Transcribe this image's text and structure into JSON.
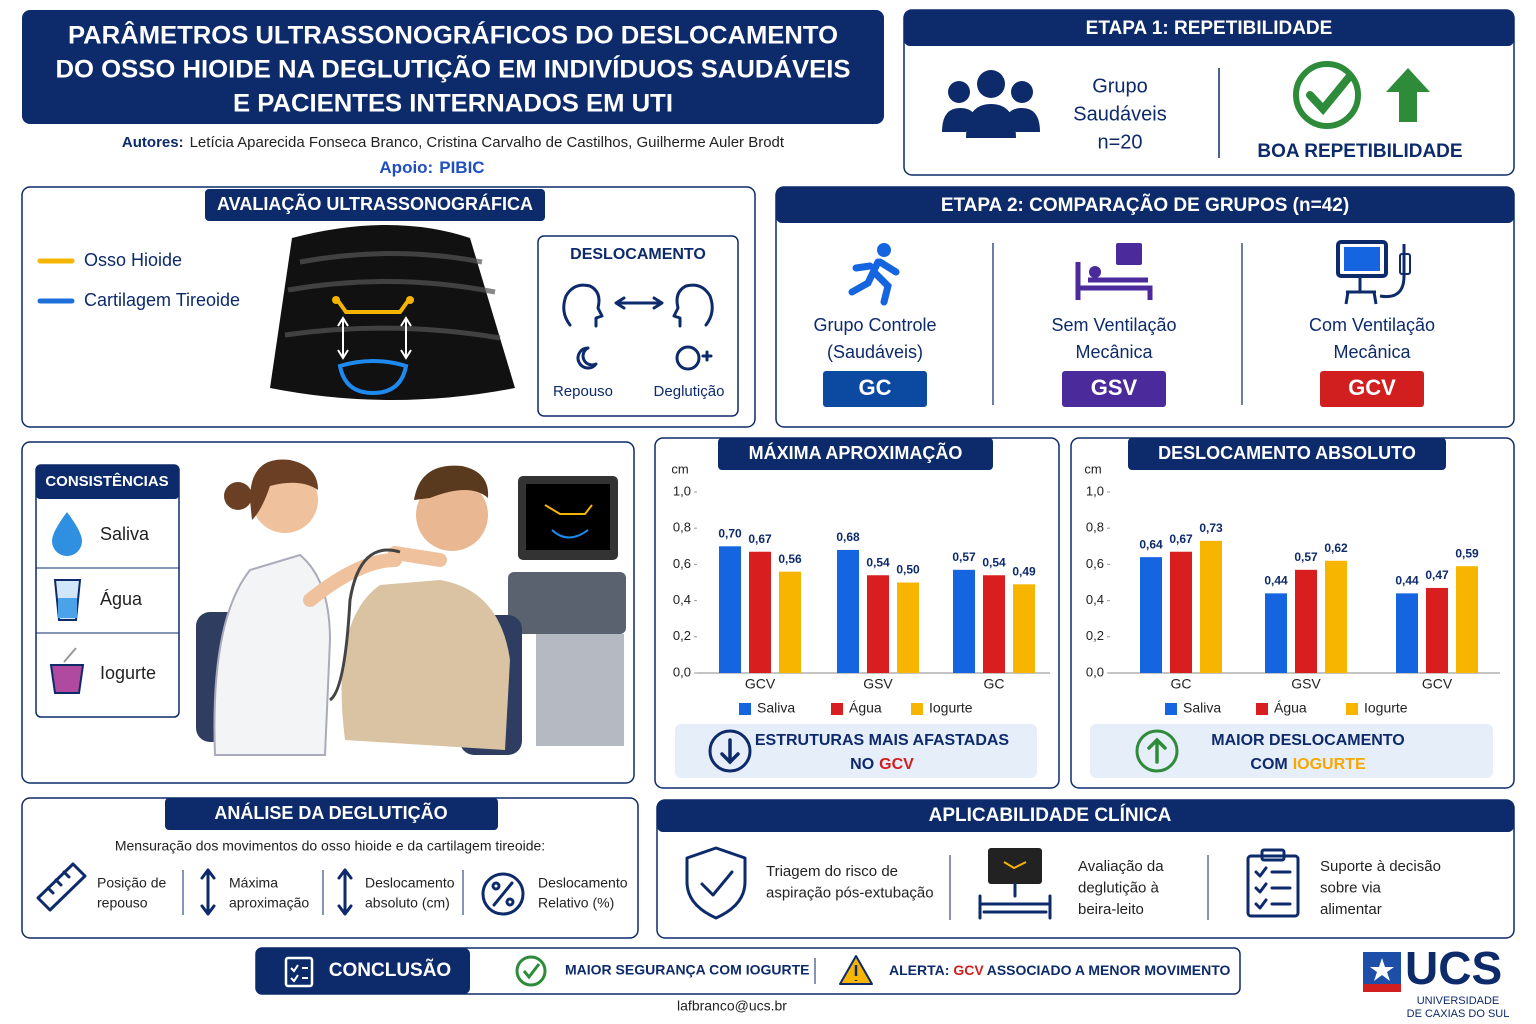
{
  "header": {
    "title": [
      "PARÂMETROS ULTRASSONOGRÁFICOS DO DESLOCAMENTO",
      "DO OSSO HIOIDE NA DEGLUTIÇÃO EM INDIVÍDUOS SAUDÁVEIS",
      "E PACIENTES INTERNADOS EM UTI"
    ],
    "authors_label": "Autores:",
    "authors": "Letícia Aparecida Fonseca Branco, Cristina Carvalho de Castilhos, Guilherme Auler Brodt",
    "support_label": "Apoio:",
    "support": "PIBIC"
  },
  "stage1": {
    "title": "ETAPA 1: REPETIBILIDADE",
    "group": [
      "Grupo",
      "Saudáveis",
      "n=20"
    ],
    "result": "BOA REPETIBILIDADE"
  },
  "evaluation": {
    "title": "AVALIAÇÃO ULTRASSONOGRÁFICA",
    "legend": [
      {
        "label": "Osso Hioide",
        "color": "#f5b400"
      },
      {
        "label": "Cartilagem Tireoide",
        "color": "#1e6fd9"
      }
    ],
    "displacement": {
      "title": "DESLOCAMENTO",
      "rest": "Repouso",
      "swallow": "Deglutição"
    }
  },
  "stage2": {
    "title": "ETAPA 2: COMPARAÇÃO DE GRUPOS (n=42)",
    "groups": [
      {
        "lines": [
          "Grupo Controle",
          "(Saudáveis)"
        ],
        "code": "GC",
        "color": "#0b4aa0"
      },
      {
        "lines": [
          "Sem Ventilação",
          "Mecânica"
        ],
        "code": "GSV",
        "color": "#4b2a9c"
      },
      {
        "lines": [
          "Com Ventilação",
          "Mecânica"
        ],
        "code": "GCV",
        "color": "#d11f1f"
      }
    ]
  },
  "consistencies": {
    "title": "CONSISTÊNCIAS",
    "items": [
      "Saliva",
      "Água",
      "Iogurte"
    ]
  },
  "chart_data": [
    {
      "type": "bar",
      "title": "MÁXIMA APROXIMAÇÃO",
      "y_label": "cm",
      "categories": [
        "GCV",
        "GSV",
        "GC"
      ],
      "series": [
        {
          "name": "Saliva",
          "color": "#1565e0",
          "values": [
            0.7,
            0.68,
            0.57
          ],
          "value_labels": [
            "0,70",
            "0,68",
            "0,57"
          ]
        },
        {
          "name": "Água",
          "color": "#d81e1e",
          "values": [
            0.67,
            0.54,
            0.54
          ],
          "value_labels": [
            "0,67",
            "0,54",
            "0,54"
          ]
        },
        {
          "name": "Iogurte",
          "color": "#f7b500",
          "values": [
            0.56,
            0.5,
            0.49
          ],
          "value_labels": [
            "0,56",
            "0,50",
            "0,49"
          ]
        }
      ],
      "ylim": [
        0,
        1
      ],
      "yticks": [
        {
          "value": 0,
          "label": "0,0"
        },
        {
          "value": 0.2,
          "label": "0,2"
        },
        {
          "value": 0.4,
          "label": "0,4"
        },
        {
          "value": 0.6,
          "label": "0,6"
        },
        {
          "value": 0.8,
          "label": "0,8"
        },
        {
          "value": 1,
          "label": "1,0"
        }
      ],
      "annotation": {
        "line1": "ESTRUTURAS MAIS AFASTADAS",
        "line2": "NO",
        "highlight": "GCV"
      }
    },
    {
      "type": "bar",
      "title": "DESLOCAMENTO ABSOLUTO",
      "y_label": "cm",
      "categories": [
        "GC",
        "GSV",
        "GCV"
      ],
      "series": [
        {
          "name": "Saliva",
          "color": "#1565e0",
          "values": [
            0.64,
            0.44,
            0.44
          ],
          "value_labels": [
            "0,64",
            "0,44",
            "0,44"
          ]
        },
        {
          "name": "Água",
          "color": "#d81e1e",
          "values": [
            0.67,
            0.57,
            0.47
          ],
          "value_labels": [
            "0,67",
            "0,57",
            "0,47"
          ]
        },
        {
          "name": "Iogurte",
          "color": "#f7b500",
          "values": [
            0.73,
            0.62,
            0.59
          ],
          "value_labels": [
            "0,73",
            "0,62",
            "0,59"
          ]
        }
      ],
      "ylim": [
        0,
        1
      ],
      "yticks": [
        {
          "value": 0,
          "label": "0,0"
        },
        {
          "value": 0.2,
          "label": "0,2"
        },
        {
          "value": 0.4,
          "label": "0,4"
        },
        {
          "value": 0.6,
          "label": "0,6"
        },
        {
          "value": 0.8,
          "label": "0,8"
        },
        {
          "value": 1,
          "label": "1,0"
        }
      ],
      "annotation": {
        "line1": "MAIOR DESLOCAMENTO",
        "line2": "COM",
        "highlight": "IOGURTE"
      }
    }
  ],
  "analysis": {
    "title": "ANÁLISE DA DEGLUTIÇÃO",
    "intro": "Mensuração dos movimentos do osso hioide e da cartilagem tireoide:",
    "items": [
      [
        "Posição de",
        "repouso"
      ],
      [
        "Máxima",
        "aproximação"
      ],
      [
        "Deslocamento",
        "absoluto (cm)"
      ],
      [
        "Deslocamento",
        "Relativo (%)"
      ]
    ]
  },
  "clinical": {
    "title": "APLICABILIDADE CLÍNICA",
    "items": [
      [
        "Triagem do risco de",
        "aspiração pós-extubação"
      ],
      [
        "Avaliação da",
        "deglutição à",
        "beira-leito"
      ],
      [
        "Suporte à decisão",
        "sobre via",
        "alimentar"
      ]
    ]
  },
  "conclusion": {
    "title": "CONCLUSÃO",
    "positive": "MAIOR SEGURANÇA COM IOGURTE",
    "alert_label": "ALERTA:",
    "alert_highlight": "GCV",
    "alert_text": "ASSOCIADO A MENOR MOVIMENTO"
  },
  "footer": {
    "email": "lafbranco@ucs.br"
  },
  "logo": {
    "name": "UCS",
    "lines": [
      "UNIVERSIDADE",
      "DE CAXIAS DO SUL"
    ]
  }
}
